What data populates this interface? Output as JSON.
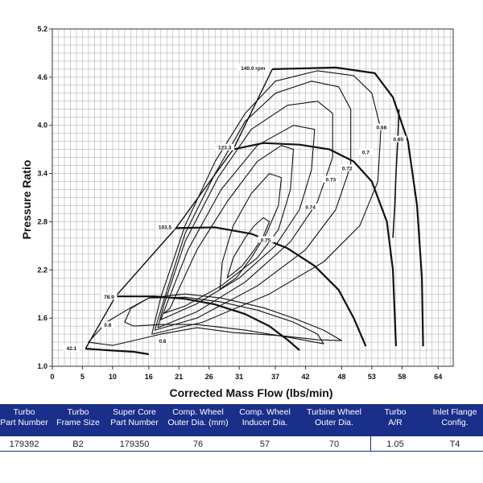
{
  "chart_data": {
    "type": "line",
    "title": "",
    "xlabel": "Corrected Mass Flow (lbs/min)",
    "ylabel": "Pressure Ratio",
    "xlim": [
      0,
      66.5
    ],
    "ylim": [
      1.0,
      5.2
    ],
    "x_ticks": [
      0,
      5,
      10,
      16,
      21,
      26,
      31,
      37,
      42,
      48,
      53,
      58,
      64
    ],
    "y_ticks": [
      "1.0",
      "1.6",
      "2.2",
      "2.8",
      "3.4",
      "4.0",
      "4.6",
      "5.2"
    ],
    "surge_line": [
      [
        5.5,
        1.22
      ],
      [
        10.5,
        1.87
      ],
      [
        20.5,
        2.72
      ],
      [
        30,
        3.7
      ],
      [
        36.5,
        4.7
      ]
    ],
    "speed_lines": [
      {
        "name": "42.1",
        "points": [
          [
            5.5,
            1.22
          ],
          [
            9,
            1.2
          ],
          [
            13.5,
            1.18
          ],
          [
            16,
            1.15
          ]
        ]
      },
      {
        "name": "78.9",
        "points": [
          [
            10.5,
            1.87
          ],
          [
            17,
            1.87
          ],
          [
            22,
            1.84
          ],
          [
            27,
            1.77
          ],
          [
            32,
            1.65
          ],
          [
            36,
            1.5
          ],
          [
            39,
            1.33
          ],
          [
            41,
            1.2
          ]
        ]
      },
      {
        "name": "103.5",
        "points": [
          [
            20.5,
            2.72
          ],
          [
            27,
            2.73
          ],
          [
            33,
            2.65
          ],
          [
            39,
            2.47
          ],
          [
            43.5,
            2.25
          ],
          [
            47.5,
            1.95
          ],
          [
            50,
            1.6
          ],
          [
            52,
            1.25
          ]
        ]
      },
      {
        "name": "123.3",
        "points": [
          [
            30,
            3.7
          ],
          [
            35,
            3.78
          ],
          [
            41,
            3.76
          ],
          [
            46,
            3.7
          ],
          [
            50,
            3.55
          ],
          [
            53,
            3.3
          ],
          [
            55.5,
            2.8
          ],
          [
            56.5,
            2.2
          ],
          [
            57,
            1.25
          ]
        ]
      },
      {
        "name": "140.0 rpm",
        "points": [
          [
            36.5,
            4.7
          ],
          [
            47,
            4.72
          ],
          [
            53.5,
            4.65
          ],
          [
            56.5,
            4.35
          ],
          [
            59,
            3.8
          ],
          [
            60.5,
            3.0
          ],
          [
            61.3,
            2.1
          ],
          [
            61.5,
            1.25
          ]
        ]
      }
    ],
    "choke_line": [
      [
        57.5,
        4.2
      ],
      [
        57.3,
        3.8
      ],
      [
        57,
        3.4
      ],
      [
        56.8,
        3.0
      ],
      [
        56.5,
        2.6
      ]
    ],
    "efficiency_islands": [
      {
        "label": "0.75",
        "points": [
          [
            29,
            2.1
          ],
          [
            30,
            2.35
          ],
          [
            32,
            2.6
          ],
          [
            33.5,
            2.75
          ],
          [
            35,
            2.85
          ],
          [
            36,
            2.8
          ],
          [
            35,
            2.62
          ],
          [
            33.5,
            2.45
          ],
          [
            31.5,
            2.25
          ],
          [
            29,
            2.1
          ]
        ]
      },
      {
        "label": "0.74",
        "points": [
          [
            27.8,
            1.96
          ],
          [
            28.2,
            2.3
          ],
          [
            30,
            2.75
          ],
          [
            33,
            3.15
          ],
          [
            36,
            3.4
          ],
          [
            38,
            3.35
          ],
          [
            37.5,
            3.0
          ],
          [
            35.5,
            2.65
          ],
          [
            33,
            2.35
          ],
          [
            30.5,
            2.1
          ],
          [
            27.8,
            1.96
          ]
        ]
      },
      {
        "label": "0.73",
        "points": [
          [
            18.5,
            1.66
          ],
          [
            19.5,
            1.72
          ],
          [
            24,
            2.45
          ],
          [
            29,
            3.05
          ],
          [
            34,
            3.55
          ],
          [
            38,
            3.75
          ],
          [
            40,
            3.7
          ],
          [
            39.5,
            3.2
          ],
          [
            37.5,
            2.7
          ],
          [
            34,
            2.35
          ],
          [
            28,
            2.0
          ],
          [
            22,
            1.75
          ],
          [
            18.5,
            1.66
          ]
        ]
      },
      {
        "label": "0.72",
        "points": [
          [
            18,
            1.58
          ],
          [
            19,
            1.78
          ],
          [
            22.5,
            2.45
          ],
          [
            28,
            3.2
          ],
          [
            34,
            3.75
          ],
          [
            40,
            4.0
          ],
          [
            43.5,
            3.95
          ],
          [
            43,
            3.45
          ],
          [
            41,
            2.95
          ],
          [
            37,
            2.5
          ],
          [
            31,
            2.1
          ],
          [
            24,
            1.78
          ],
          [
            18,
            1.58
          ]
        ]
      },
      {
        "label": "0.7",
        "points": [
          [
            17.5,
            1.48
          ],
          [
            18.5,
            1.76
          ],
          [
            22,
            2.55
          ],
          [
            27.5,
            3.35
          ],
          [
            33,
            3.95
          ],
          [
            39,
            4.25
          ],
          [
            44,
            4.3
          ],
          [
            46.5,
            4.15
          ],
          [
            46.5,
            3.6
          ],
          [
            44,
            3.05
          ],
          [
            39.5,
            2.55
          ],
          [
            32,
            2.05
          ],
          [
            24,
            1.68
          ],
          [
            17.5,
            1.48
          ]
        ]
      },
      {
        "label": "0.68",
        "points": [
          [
            17,
            1.45
          ],
          [
            18.5,
            1.82
          ],
          [
            22,
            2.65
          ],
          [
            27,
            3.4
          ],
          [
            32,
            4.05
          ],
          [
            37,
            4.4
          ],
          [
            43,
            4.55
          ],
          [
            47.5,
            4.48
          ],
          [
            49.5,
            4.2
          ],
          [
            49.5,
            3.5
          ],
          [
            47,
            2.95
          ],
          [
            42,
            2.45
          ],
          [
            34,
            2.0
          ],
          [
            24,
            1.6
          ],
          [
            17,
            1.45
          ]
        ]
      },
      {
        "label": "0.65",
        "points": [
          [
            16.5,
            1.4
          ],
          [
            18,
            1.86
          ],
          [
            22,
            2.75
          ],
          [
            27,
            3.55
          ],
          [
            32,
            4.15
          ],
          [
            37,
            4.55
          ],
          [
            44,
            4.68
          ],
          [
            50,
            4.62
          ],
          [
            53,
            4.4
          ],
          [
            54.5,
            3.95
          ],
          [
            54,
            3.3
          ],
          [
            51,
            2.75
          ],
          [
            45,
            2.3
          ],
          [
            36,
            1.9
          ],
          [
            25,
            1.55
          ],
          [
            16.5,
            1.4
          ]
        ]
      },
      {
        "label": "0.6",
        "points": [
          [
            12,
            1.55
          ],
          [
            13,
            1.72
          ],
          [
            16,
            1.85
          ],
          [
            22,
            1.86
          ],
          [
            28,
            1.8
          ],
          [
            34,
            1.7
          ],
          [
            40,
            1.55
          ],
          [
            44,
            1.4
          ],
          [
            45,
            1.28
          ],
          [
            40,
            1.35
          ],
          [
            32,
            1.45
          ],
          [
            24,
            1.52
          ],
          [
            18,
            1.52
          ],
          [
            13.5,
            1.5
          ],
          [
            12,
            1.55
          ]
        ]
      },
      {
        "label": "0.6",
        "points": [
          [
            6,
            1.3
          ],
          [
            9,
            1.55
          ],
          [
            13,
            1.73
          ],
          [
            16,
            1.85
          ],
          [
            22,
            1.9
          ],
          [
            28,
            1.85
          ],
          [
            35,
            1.73
          ],
          [
            40,
            1.6
          ],
          [
            45,
            1.45
          ],
          [
            48,
            1.32
          ],
          [
            44,
            1.33
          ],
          [
            38,
            1.38
          ],
          [
            30,
            1.42
          ],
          [
            24,
            1.48
          ],
          [
            18,
            1.4
          ],
          [
            14,
            1.33
          ],
          [
            10,
            1.26
          ],
          [
            6,
            1.3
          ]
        ]
      }
    ],
    "annotations": [
      {
        "text": "140.0 rpm",
        "x": 33.3,
        "y": 4.71
      },
      {
        "text": "123.3",
        "x": 28.6,
        "y": 3.72
      },
      {
        "text": "103.5",
        "x": 18.7,
        "y": 2.73
      },
      {
        "text": "78.9",
        "x": 9.4,
        "y": 1.86
      },
      {
        "text": "42.1",
        "x": 3.2,
        "y": 1.22
      },
      {
        "text": "0.75",
        "x": 35.4,
        "y": 2.57
      },
      {
        "text": "0.74",
        "x": 42.8,
        "y": 2.98
      },
      {
        "text": "0.73",
        "x": 46.2,
        "y": 3.32
      },
      {
        "text": "0.72",
        "x": 48.9,
        "y": 3.46
      },
      {
        "text": "0.7",
        "x": 52.0,
        "y": 3.66
      },
      {
        "text": "0.68",
        "x": 54.6,
        "y": 3.97
      },
      {
        "text": "0.65",
        "x": 57.4,
        "y": 3.82
      },
      {
        "text": "0.6",
        "x": 9.2,
        "y": 1.51
      },
      {
        "text": "0.6",
        "x": 18.3,
        "y": 1.31
      }
    ]
  },
  "table": {
    "headers": [
      [
        "Turbo",
        "Part Number"
      ],
      [
        "Turbo",
        "Frame Size"
      ],
      [
        "Super Core",
        "Part Number"
      ],
      [
        "Comp. Wheel",
        "Outer Dia. (mm)"
      ],
      [
        "Comp. Wheel",
        "Inducer Dia."
      ],
      [
        "Turbine Wheel",
        "Outer Dia."
      ],
      [
        "Turbo",
        "A/R"
      ],
      [
        "Inlet Flange",
        "Config."
      ]
    ],
    "values": [
      "179392",
      "B2",
      "179350",
      "76",
      "57",
      "70",
      "1.05",
      "T4"
    ]
  },
  "colors": {
    "header_bg": "#1a2f8a",
    "grid": "#9a9a9a",
    "line": "#111111"
  }
}
